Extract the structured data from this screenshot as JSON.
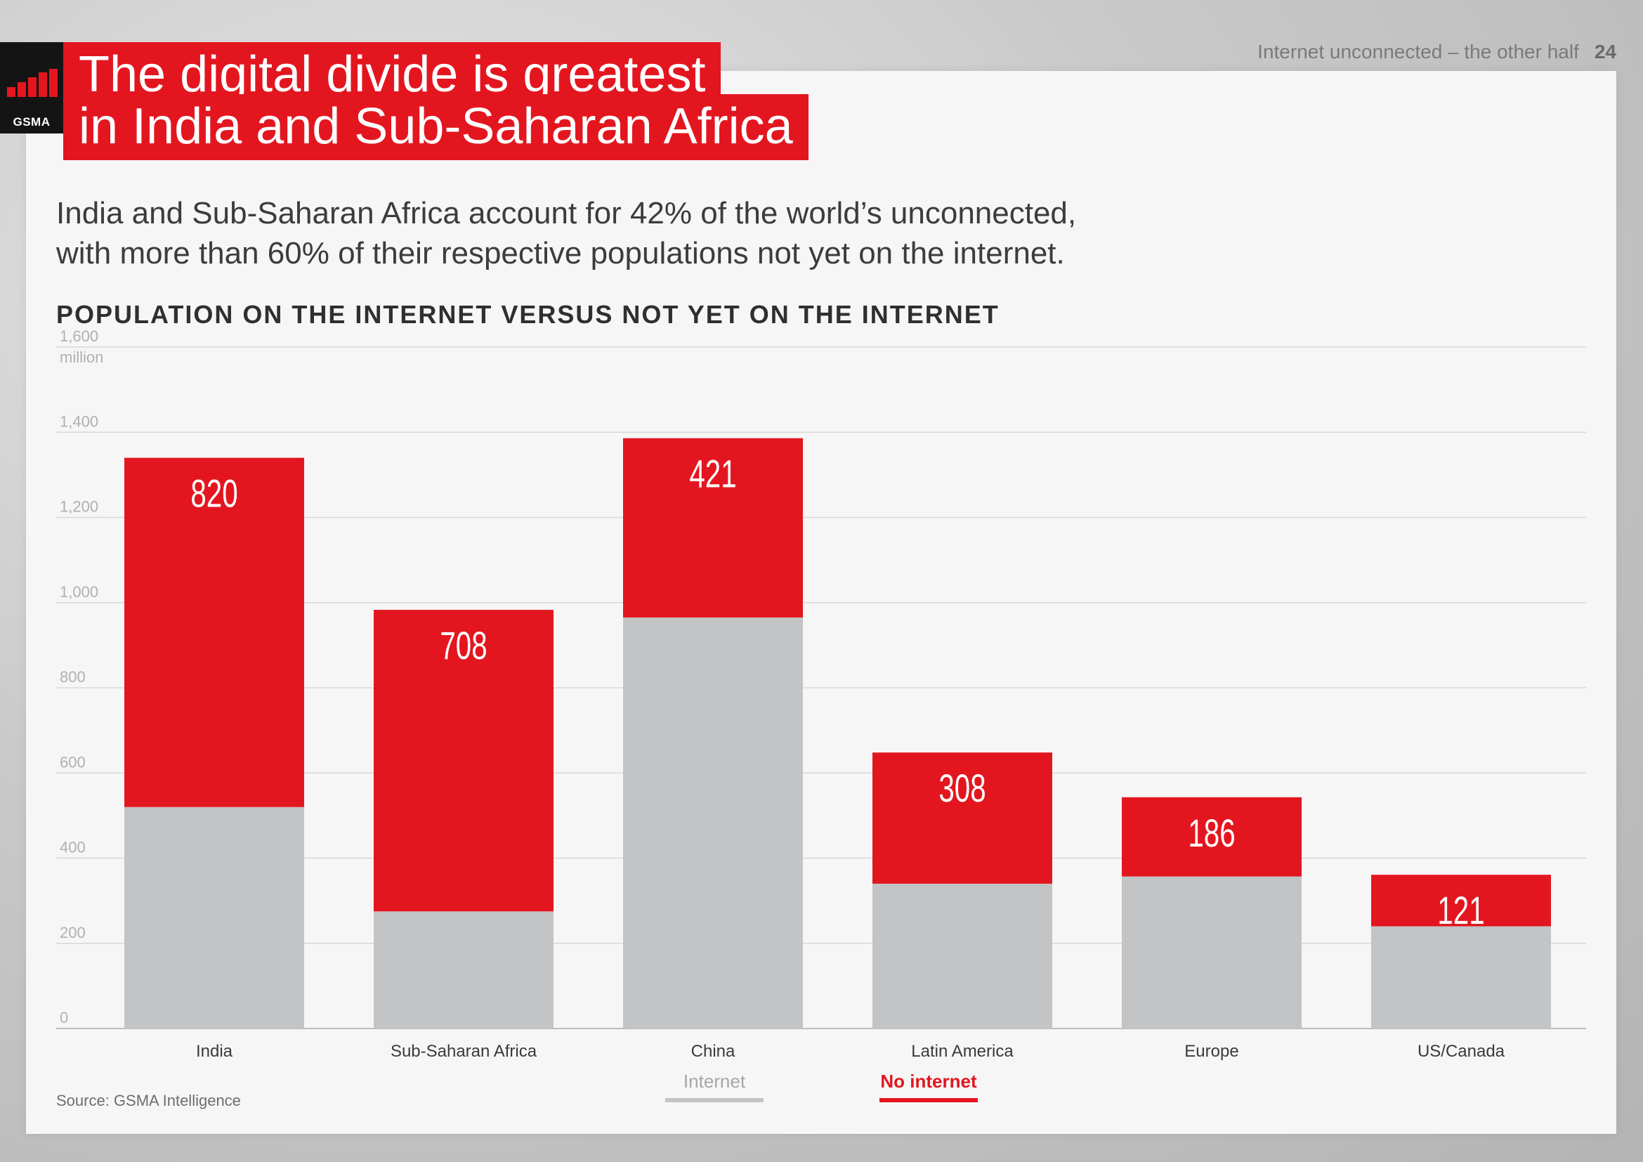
{
  "header": {
    "logo_text": "GSMA",
    "title_line1": "The digital divide is greatest",
    "title_line2": "in India and Sub-Saharan Africa",
    "doc_title": "Internet unconnected – the other half",
    "page_number": "24"
  },
  "subtitle_line1": "India and Sub-Saharan Africa account for 42% of the world’s unconnected,",
  "subtitle_line2": "with more than 60% of their respective populations not yet on the internet.",
  "source": "Source: GSMA Intelligence",
  "colors": {
    "accent": "#e3161f",
    "internet": "#c3c4c6",
    "grid": "#d8d8d8"
  },
  "chart_data": {
    "type": "bar",
    "stacked": true,
    "title": "POPULATION ON THE INTERNET VERSUS NOT YET ON THE INTERNET",
    "ylabel": "million",
    "ylim": [
      0,
      1600
    ],
    "yticks": [
      "0",
      "200",
      "400",
      "600",
      "800",
      "1,000",
      "1,200",
      "1,400",
      "1,600"
    ],
    "ytick_values": [
      0,
      200,
      400,
      600,
      800,
      1000,
      1200,
      1400,
      1600
    ],
    "categories": [
      "India",
      "Sub-Saharan Africa",
      "China",
      "Latin America",
      "Europe",
      "US/Canada"
    ],
    "series": [
      {
        "name": "Internet",
        "color": "#c3c4c6",
        "values": [
          520,
          275,
          965,
          340,
          357,
          240
        ]
      },
      {
        "name": "No internet",
        "color": "#e3161f",
        "values": [
          820,
          708,
          421,
          308,
          186,
          121
        ]
      }
    ],
    "data_labels": [
      "820",
      "708",
      "421",
      "308",
      "186",
      "121"
    ],
    "legend": [
      "Internet",
      "No internet"
    ],
    "legend_position": "bottom-center",
    "grid": true
  }
}
